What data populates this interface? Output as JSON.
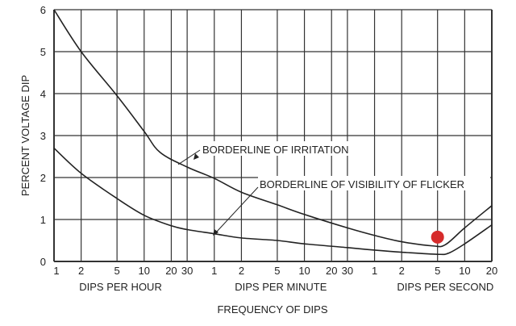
{
  "chart_data": {
    "type": "line",
    "x_scale": "log",
    "x_units_note": "x values in dips per hour",
    "xlabel": "FREQUENCY OF DIPS",
    "ylabel": "PERCENT VOLTAGE DIP",
    "ylim": [
      0,
      6
    ],
    "xlim": [
      1,
      72000
    ],
    "grid": true,
    "y_ticks": [
      0,
      1,
      2,
      3,
      4,
      5,
      6
    ],
    "x_ticks": [
      {
        "value": 1,
        "label": "1"
      },
      {
        "value": 2,
        "label": "2"
      },
      {
        "value": 5,
        "label": "5"
      },
      {
        "value": 10,
        "label": "10"
      },
      {
        "value": 20,
        "label": "20"
      },
      {
        "value": 30,
        "label": "30"
      },
      {
        "value": 60,
        "label": "1"
      },
      {
        "value": 120,
        "label": "2"
      },
      {
        "value": 300,
        "label": "5"
      },
      {
        "value": 600,
        "label": "10"
      },
      {
        "value": 1200,
        "label": "20"
      },
      {
        "value": 1800,
        "label": "30"
      },
      {
        "value": 3600,
        "label": "1"
      },
      {
        "value": 7200,
        "label": "2"
      },
      {
        "value": 18000,
        "label": "5"
      },
      {
        "value": 36000,
        "label": "10"
      },
      {
        "value": 72000,
        "label": "20"
      }
    ],
    "x_groups": [
      {
        "label": "DIPS PER HOUR",
        "from": 1,
        "to": 30
      },
      {
        "label": "DIPS PER MINUTE",
        "from": 60,
        "to": 1800
      },
      {
        "label": "DIPS PER SECOND",
        "from": 3600,
        "to": 72000
      }
    ],
    "series": [
      {
        "name": "BORDERLINE OF IRRITATION",
        "x": [
          1,
          2,
          5,
          10,
          15,
          30,
          60,
          120,
          300,
          600,
          1800,
          3600,
          7200,
          16000,
          22000,
          36000,
          72000
        ],
        "y": [
          6,
          5,
          3.95,
          3.1,
          2.6,
          2.25,
          1.98,
          1.65,
          1.35,
          1.12,
          0.8,
          0.62,
          0.47,
          0.37,
          0.4,
          0.8,
          1.33
        ]
      },
      {
        "name": "BORDERLINE OF VISIBILITY OF FLICKER",
        "x": [
          1,
          2,
          5,
          10,
          20,
          30,
          60,
          120,
          300,
          600,
          1800,
          3600,
          7200,
          18000,
          24000,
          36000,
          72000
        ],
        "y": [
          2.7,
          2.1,
          1.5,
          1.1,
          0.85,
          0.76,
          0.66,
          0.56,
          0.5,
          0.42,
          0.33,
          0.27,
          0.22,
          0.17,
          0.2,
          0.42,
          0.87
        ]
      }
    ],
    "annotations": [
      {
        "text": "BORDERLINE OF IRRITATION",
        "points_to_x": 22,
        "points_to_y": 2.35
      },
      {
        "text": "BORDERLINE OF VISIBILITY OF FLICKER",
        "points_to_x": 40,
        "points_to_y": 0.7
      }
    ],
    "highlight_point": {
      "x": 18000,
      "y": 0.58,
      "color": "#d62b2b"
    },
    "line_color": "#222222",
    "grid_color": "#333333"
  }
}
